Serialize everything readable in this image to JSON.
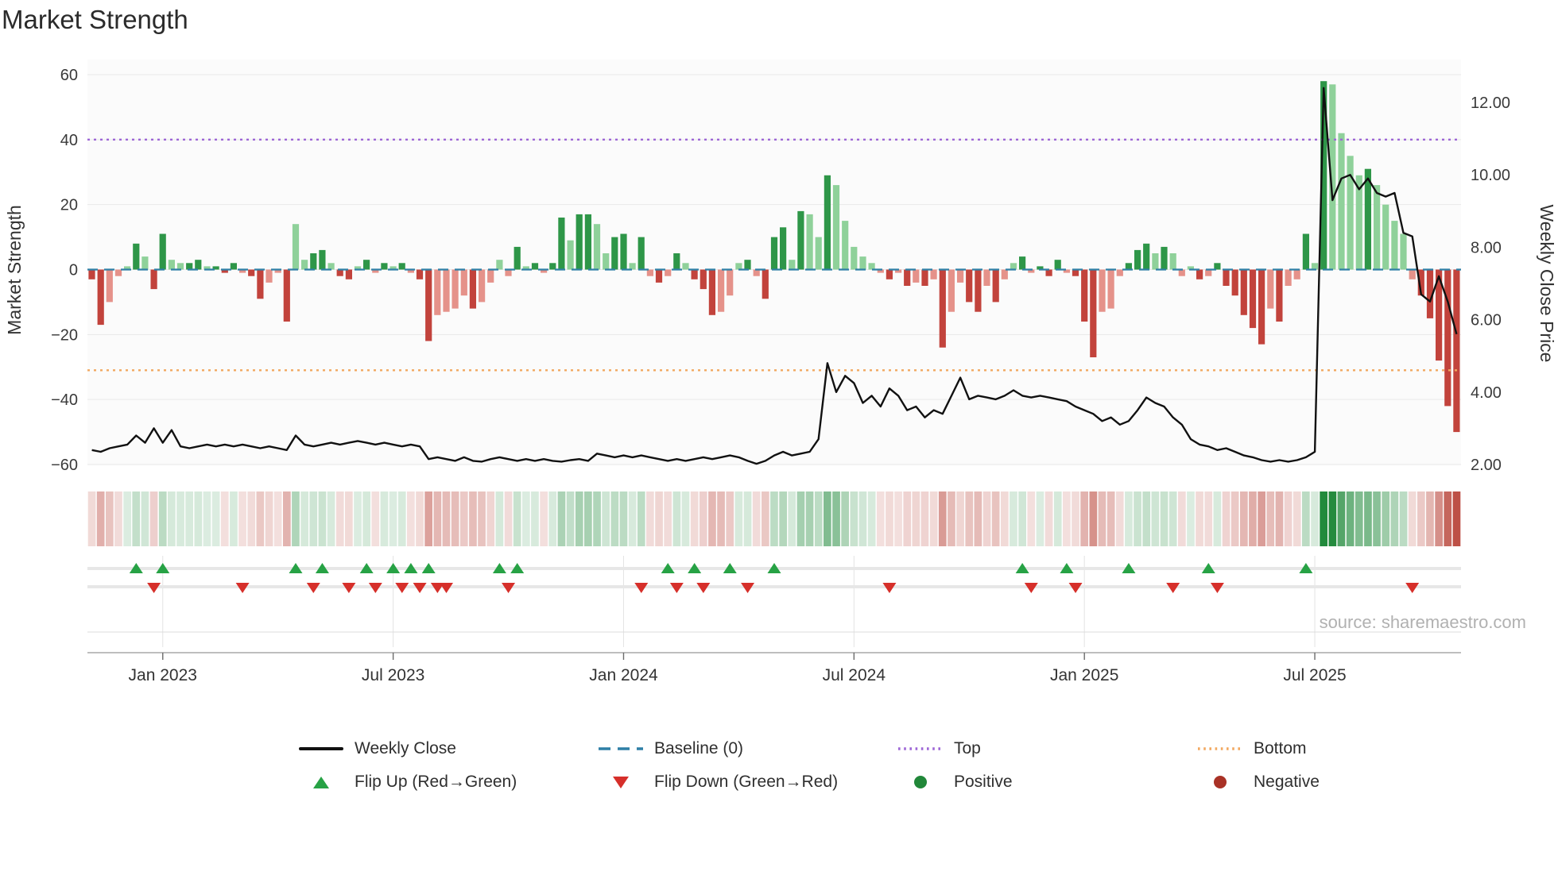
{
  "title": "Market Strength",
  "source": "source: sharemaestro.com",
  "colors": {
    "bar_green_dark": "#2e9648",
    "bar_green_light": "#8fd19a",
    "bar_red_dark": "#c2433c",
    "bar_red_light": "#e5928a",
    "price_line": "#111111",
    "baseline_blue": "#2f7fa6",
    "top_purple": "#9d66d6",
    "bottom_orange": "#f2a860",
    "flip_up_green": "#27a245",
    "flip_down_red": "#d62f2a",
    "positive_green": "#218739",
    "negative_red": "#a93226"
  },
  "axes": {
    "left": {
      "title": "Market Strength",
      "ticks": [
        60,
        40,
        20,
        0,
        -20,
        -40,
        -60
      ],
      "tick_labels": [
        "60",
        "40",
        "20",
        "0",
        "−20",
        "−40",
        "−60"
      ]
    },
    "right": {
      "title": "Weekly Close Price",
      "ticks": [
        12,
        10,
        8,
        6,
        4,
        2
      ],
      "tick_labels": [
        "12.00",
        "10.00",
        "8.00",
        "6.00",
        "4.00",
        "2.00"
      ]
    }
  },
  "legend": {
    "weekly_close": "Weekly Close",
    "baseline": "Baseline (0)",
    "top": "Top",
    "bottom": "Bottom",
    "flip_up": "Flip Up (Red→Green)",
    "flip_down": "Flip Down (Green→Red)",
    "positive": "Positive",
    "negative": "Negative"
  },
  "chart_data": {
    "type": "bar",
    "subtype": "combo: strength bars (left axis) + weekly close line (right axis) + heatmap strip + flip markers",
    "title": "Market Strength",
    "xlabel": "",
    "ylabel_left": "Market Strength",
    "ylabel_right": "Weekly Close Price",
    "ylim_left": [
      -60,
      60
    ],
    "ylim_right": [
      2,
      12
    ],
    "grid": true,
    "legend_position": "bottom",
    "x_unit": "week",
    "n_weeks": 155,
    "x_tick_weeks": [
      8,
      34,
      60,
      86,
      112,
      138
    ],
    "x_tick_labels": [
      "Jan 2023",
      "Jul 2023",
      "Jan 2024",
      "Jul 2024",
      "Jan 2025",
      "Jul 2025"
    ],
    "baseline": 0,
    "top_level": 40,
    "bottom_level": -31,
    "strength": [
      -3,
      -17,
      -10,
      -2,
      1,
      8,
      4,
      -6,
      11,
      3,
      2,
      2,
      3,
      1,
      1,
      -1,
      2,
      -1,
      -2,
      -9,
      -4,
      -1,
      -16,
      14,
      3,
      5,
      6,
      2,
      -2,
      -3,
      1,
      3,
      -1,
      2,
      1,
      2,
      -1,
      -3,
      -22,
      -14,
      -13,
      -12,
      -8,
      -12,
      -10,
      -4,
      3,
      -2,
      7,
      1,
      2,
      -1,
      2,
      16,
      9,
      17,
      17,
      14,
      5,
      10,
      11,
      2,
      10,
      -2,
      -4,
      -2,
      5,
      2,
      -3,
      -6,
      -14,
      -13,
      -8,
      2,
      3,
      -2,
      -9,
      10,
      13,
      3,
      18,
      17,
      10,
      29,
      26,
      15,
      7,
      4,
      2,
      -1,
      -3,
      -1,
      -5,
      -4,
      -5,
      -3,
      -24,
      -13,
      -4,
      -10,
      -13,
      -5,
      -10,
      -3,
      2,
      4,
      -1,
      1,
      -2,
      3,
      -1,
      -2,
      -16,
      -27,
      -13,
      -12,
      -2,
      2,
      6,
      8,
      5,
      7,
      5,
      -2,
      1,
      -3,
      -2,
      2,
      -5,
      -8,
      -14,
      -18,
      -23,
      -12,
      -16,
      -5,
      -3,
      11,
      2,
      58,
      57,
      42,
      35,
      29,
      31,
      26,
      20,
      15,
      11,
      -3,
      -8,
      -15,
      -28,
      -42,
      -50
    ],
    "weekly_close": [
      2.4,
      2.35,
      2.45,
      2.5,
      2.55,
      2.8,
      2.6,
      3.0,
      2.6,
      2.95,
      2.5,
      2.45,
      2.5,
      2.55,
      2.5,
      2.55,
      2.5,
      2.55,
      2.5,
      2.45,
      2.5,
      2.45,
      2.4,
      2.8,
      2.55,
      2.5,
      2.55,
      2.6,
      2.55,
      2.6,
      2.65,
      2.6,
      2.55,
      2.6,
      2.55,
      2.5,
      2.55,
      2.5,
      2.15,
      2.2,
      2.15,
      2.1,
      2.2,
      2.1,
      2.08,
      2.15,
      2.2,
      2.15,
      2.1,
      2.15,
      2.1,
      2.15,
      2.1,
      2.08,
      2.12,
      2.15,
      2.1,
      2.3,
      2.25,
      2.2,
      2.25,
      2.2,
      2.25,
      2.2,
      2.15,
      2.1,
      2.15,
      2.1,
      2.15,
      2.2,
      2.15,
      2.2,
      2.25,
      2.2,
      2.1,
      2.02,
      2.1,
      2.25,
      2.35,
      2.25,
      2.3,
      2.35,
      2.7,
      4.8,
      4.0,
      4.45,
      4.25,
      3.7,
      3.9,
      3.6,
      4.1,
      3.9,
      3.5,
      3.6,
      3.3,
      3.5,
      3.4,
      3.9,
      4.4,
      3.8,
      3.9,
      3.85,
      3.8,
      3.9,
      4.05,
      3.9,
      3.85,
      3.9,
      3.85,
      3.8,
      3.75,
      3.6,
      3.5,
      3.4,
      3.2,
      3.3,
      3.1,
      3.2,
      3.5,
      3.85,
      3.7,
      3.6,
      3.3,
      3.1,
      2.7,
      2.55,
      2.5,
      2.4,
      2.45,
      2.35,
      2.25,
      2.2,
      2.12,
      2.08,
      2.12,
      2.08,
      2.12,
      2.2,
      2.35,
      12.4,
      9.3,
      9.9,
      10.0,
      9.6,
      9.9,
      9.5,
      9.4,
      9.5,
      8.4,
      8.3,
      6.7,
      6.5,
      7.2,
      6.5,
      5.6
    ],
    "flip_up_weeks": [
      5,
      8,
      23,
      26,
      31,
      34,
      36,
      38,
      46,
      48,
      65,
      68,
      72,
      77,
      105,
      110,
      117,
      126,
      137
    ],
    "flip_down_weeks": [
      7,
      17,
      25,
      29,
      32,
      35,
      37,
      39,
      40,
      47,
      62,
      66,
      69,
      74,
      90,
      106,
      111,
      122,
      127,
      149
    ]
  }
}
